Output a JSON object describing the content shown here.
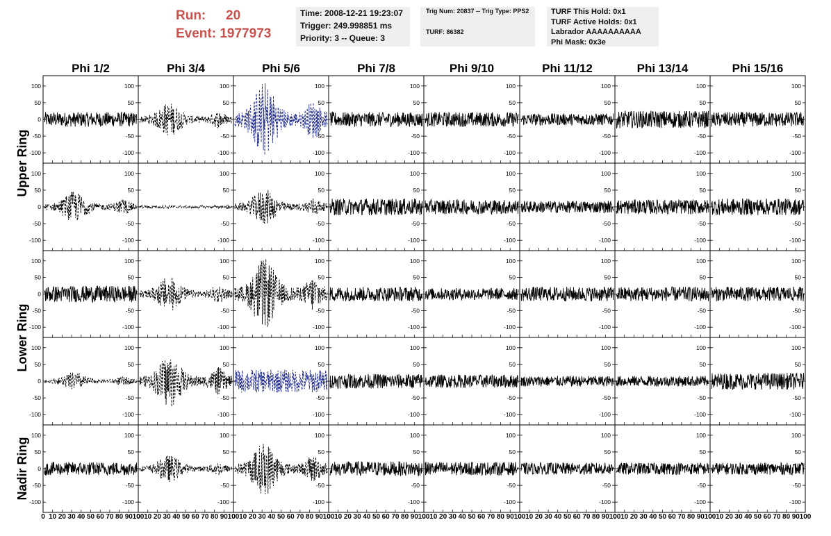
{
  "header": {
    "run_label": "Run:",
    "run_value": "20",
    "event_label": "Event:",
    "event_value": "1977973",
    "time_info": [
      "Time: 2008-12-21 19:23:07",
      "Trigger: 249.998851 ms",
      "Priority: 3 -- Queue: 3"
    ],
    "trig_info": "Trig Num: 20837 -- Trig Type: PPS2",
    "turf_info": "TURF: 86382",
    "turf_holds": [
      "TURF This Hold: 0x1",
      "TURF Active Holds: 0x1",
      "Labrador AAAAAAAAAA",
      "Phi Mask: 0x3e"
    ]
  },
  "colors": {
    "run_text": "#c8524e",
    "info_box": "#efefef",
    "trace_black": "#000000",
    "trace_blue": "#1f2a8c"
  },
  "chart_data": {
    "type": "line",
    "title": "",
    "columns": [
      "Phi 1/2",
      "Phi 3/4",
      "Phi 5/6",
      "Phi 7/8",
      "Phi 9/10",
      "Phi 11/12",
      "Phi 13/14",
      "Phi 15/16"
    ],
    "ring_labels": [
      "Upper Ring",
      "Lower Ring",
      "Nadir Ring"
    ],
    "x_ticks": [
      0,
      10,
      20,
      30,
      40,
      50,
      60,
      70,
      80,
      90,
      100
    ],
    "y_ticks": [
      -100,
      -50,
      0,
      50,
      100
    ],
    "ylim": [
      -110,
      110
    ],
    "xlim": [
      0,
      100
    ],
    "grid": false,
    "rows": [
      {
        "ring": "Upper Ring",
        "amplitudes": [
          22,
          38,
          85,
          22,
          22,
          18,
          26,
          22
        ],
        "bursty": [
          false,
          true,
          true,
          false,
          false,
          false,
          false,
          false
        ]
      },
      {
        "ring": "Upper Ring",
        "amplitudes": [
          35,
          4,
          40,
          25,
          22,
          18,
          22,
          25
        ],
        "bursty": [
          true,
          false,
          true,
          false,
          false,
          false,
          false,
          false
        ]
      },
      {
        "ring": "Lower Ring",
        "amplitudes": [
          25,
          40,
          80,
          22,
          18,
          22,
          22,
          22
        ],
        "bursty": [
          false,
          true,
          true,
          false,
          false,
          false,
          false,
          false
        ]
      },
      {
        "ring": "Lower Ring",
        "amplitudes": [
          20,
          60,
          35,
          22,
          20,
          16,
          16,
          25
        ],
        "bursty": [
          true,
          true,
          false,
          false,
          false,
          false,
          false,
          false
        ]
      },
      {
        "ring": "Nadir Ring",
        "amplitudes": [
          20,
          30,
          60,
          22,
          20,
          18,
          18,
          18
        ],
        "bursty": [
          false,
          true,
          true,
          false,
          false,
          false,
          false,
          false
        ]
      }
    ],
    "trace_styles": [
      [
        "solid",
        "dashed",
        "dashed-blue",
        "solid",
        "solid",
        "solid",
        "solid",
        "solid"
      ],
      [
        "dashed",
        "dashed",
        "dashed",
        "solid",
        "solid",
        "solid",
        "solid",
        "solid"
      ],
      [
        "solid",
        "dashed",
        "dashed",
        "solid",
        "solid",
        "solid",
        "solid",
        "solid"
      ],
      [
        "dashed",
        "dashed",
        "dashed-blue",
        "solid",
        "solid",
        "solid",
        "solid",
        "solid"
      ],
      [
        "solid",
        "dashed",
        "dashed",
        "solid",
        "solid",
        "solid",
        "solid",
        "solid"
      ]
    ]
  }
}
